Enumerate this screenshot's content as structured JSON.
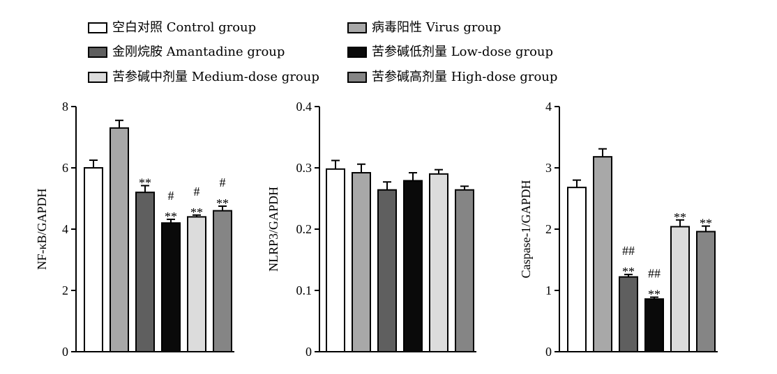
{
  "legend": {
    "items": [
      {
        "label": "空白对照 Control group",
        "color": "#ffffff"
      },
      {
        "label": "病毒阳性 Virus group",
        "color": "#a8a8a8"
      },
      {
        "label": "金刚烷胺 Amantadine group",
        "color": "#5f5f5f"
      },
      {
        "label": "苦参碱低剂量 Low-dose group",
        "color": "#0a0a0a"
      },
      {
        "label": "苦参碱中剂量 Medium-dose group",
        "color": "#dcdcdc"
      },
      {
        "label": "苦参碱高剂量 High-dose group",
        "color": "#858585"
      }
    ]
  },
  "chart_data": [
    {
      "type": "bar",
      "ylabel": "NF-κB/GAPDH",
      "ylim": [
        0,
        8
      ],
      "yticks": [
        "0",
        "2",
        "4",
        "6",
        "8"
      ],
      "tick_values": [
        0,
        2,
        4,
        6,
        8
      ],
      "categories": [
        "空白对照 Control group",
        "病毒阳性 Virus group",
        "金刚烷胺 Amantadine group",
        "苦参碱低剂量 Low-dose group",
        "苦参碱中剂量 Medium-dose group",
        "苦参碱高剂量 High-dose group"
      ],
      "values": [
        6.0,
        7.3,
        5.2,
        4.2,
        4.4,
        4.6
      ],
      "errors": [
        0.25,
        0.25,
        0.22,
        0.12,
        0.06,
        0.15
      ],
      "annotations": [
        [],
        [],
        [
          "**"
        ],
        [
          "**",
          "#"
        ],
        [
          "**",
          "#"
        ],
        [
          "**",
          "#"
        ]
      ]
    },
    {
      "type": "bar",
      "ylabel": "NLRP3/GAPDH",
      "ylim": [
        0,
        0.4
      ],
      "yticks": [
        "0",
        "0.1",
        "0.2",
        "0.3",
        "0.4"
      ],
      "tick_values": [
        0,
        0.1,
        0.2,
        0.3,
        0.4
      ],
      "categories": [
        "空白对照 Control group",
        "病毒阳性 Virus group",
        "金刚烷胺 Amantadine group",
        "苦参碱低剂量 Low-dose group",
        "苦参碱中剂量 Medium-dose group",
        "苦参碱高剂量 High-dose group"
      ],
      "values": [
        0.298,
        0.292,
        0.264,
        0.279,
        0.29,
        0.264
      ],
      "errors": [
        0.014,
        0.014,
        0.013,
        0.013,
        0.007,
        0.006
      ],
      "annotations": [
        [],
        [],
        [],
        [],
        [],
        []
      ]
    },
    {
      "type": "bar",
      "ylabel": "Caspase-1/GAPDH",
      "ylim": [
        0,
        4
      ],
      "yticks": [
        "0",
        "1",
        "2",
        "3",
        "4"
      ],
      "tick_values": [
        0,
        1,
        2,
        3,
        4
      ],
      "categories": [
        "空白对照 Control group",
        "病毒阳性 Virus group",
        "金刚烷胺 Amantadine group",
        "苦参碱低剂量 Low-dose group",
        "苦参碱中剂量 Medium-dose group",
        "苦参碱高剂量 High-dose group"
      ],
      "values": [
        2.68,
        3.18,
        1.22,
        0.86,
        2.04,
        1.96
      ],
      "errors": [
        0.12,
        0.13,
        0.04,
        0.03,
        0.11,
        0.09
      ],
      "annotations": [
        [],
        [],
        [
          "**",
          "##"
        ],
        [
          "**",
          "##"
        ],
        [
          "**"
        ],
        [
          "**"
        ]
      ]
    }
  ]
}
